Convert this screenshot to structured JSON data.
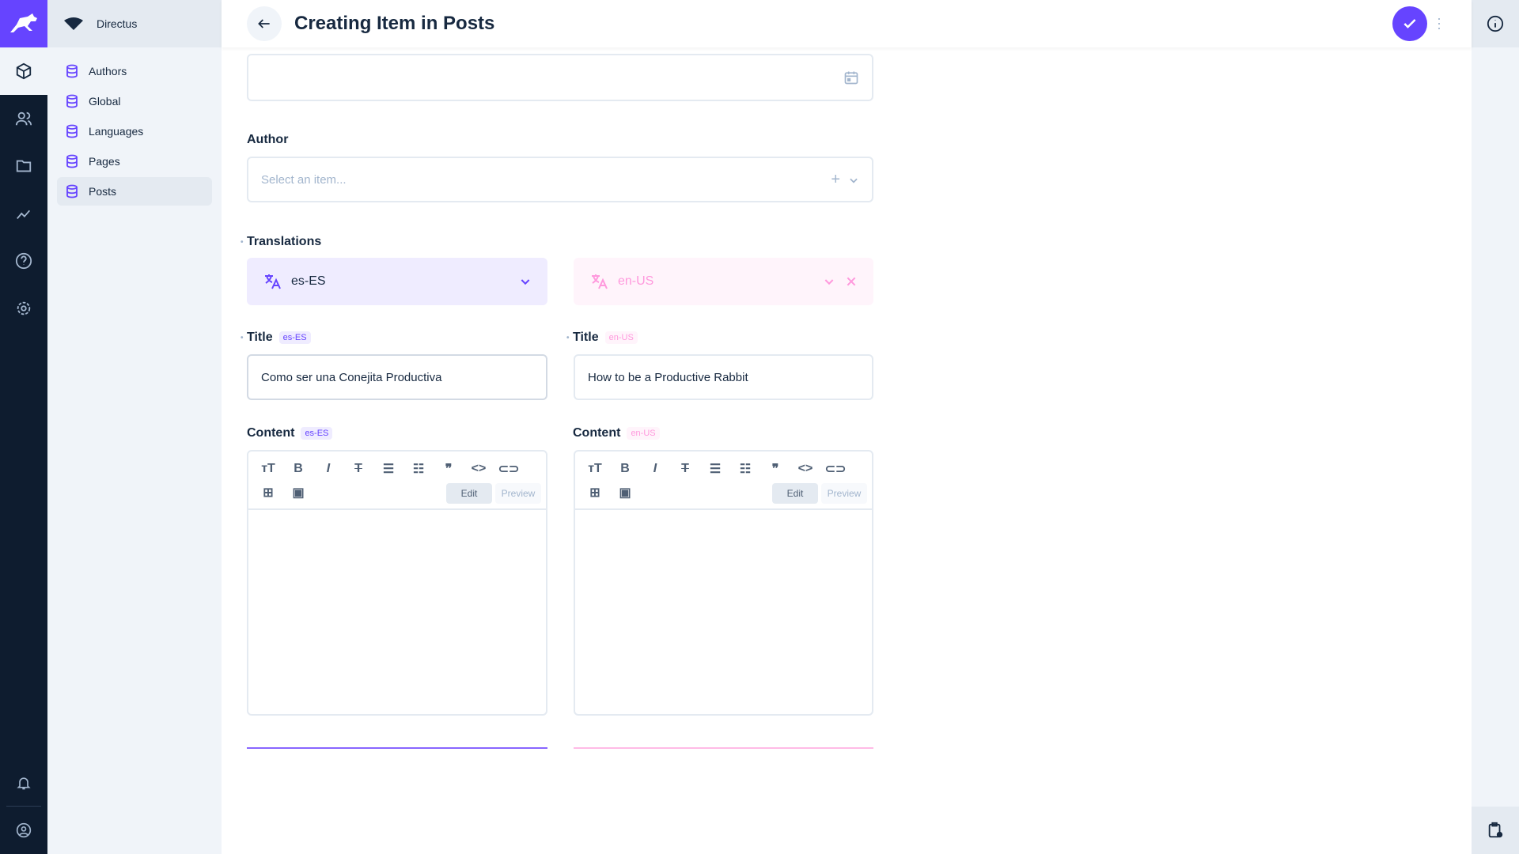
{
  "app": {
    "name": "Directus",
    "accent": "#6644ff"
  },
  "nav": {
    "modules": [
      "content-icon",
      "users-icon",
      "files-icon",
      "insights-icon",
      "help-icon",
      "settings-icon"
    ],
    "bottom": [
      "notifications-icon",
      "user-icon"
    ]
  },
  "sidebar": {
    "project": "Directus",
    "items": [
      {
        "label": "Authors"
      },
      {
        "label": "Global"
      },
      {
        "label": "Languages"
      },
      {
        "label": "Pages"
      },
      {
        "label": "Posts",
        "active": true
      }
    ]
  },
  "header": {
    "title": "Creating Item in Posts"
  },
  "form": {
    "author": {
      "label": "Author",
      "placeholder": "Select an item..."
    },
    "translations": {
      "label": "Translations",
      "left_lang": "es-ES",
      "right_lang": "en-US"
    },
    "title_left": {
      "label": "Title",
      "badge": "es-ES",
      "value": "Como ser una Conejita Productiva"
    },
    "title_right": {
      "label": "Title",
      "badge": "en-US",
      "value": "How to be a Productive Rabbit"
    },
    "content_left": {
      "label": "Content",
      "badge": "es-ES",
      "edit": "Edit",
      "preview": "Preview"
    },
    "content_right": {
      "label": "Content",
      "badge": "en-US",
      "edit": "Edit",
      "preview": "Preview"
    }
  },
  "colors": {
    "primary_lang": "#6644ff",
    "secondary_lang": "#ff99dd"
  }
}
